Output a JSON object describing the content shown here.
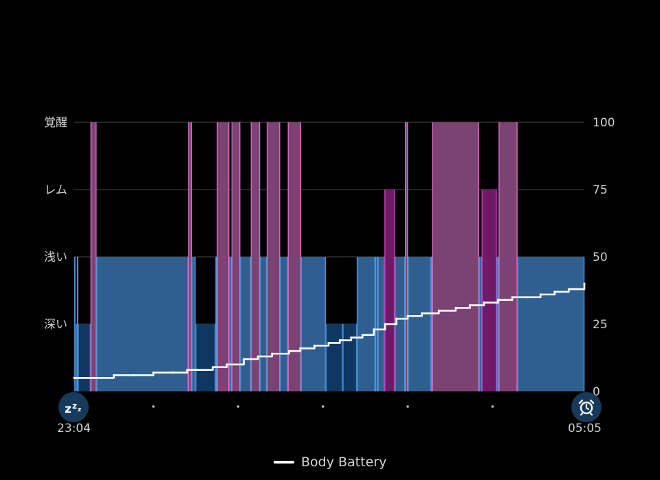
{
  "chart_data": {
    "type": "area",
    "stage_labels": [
      "覚醒",
      "レム",
      "浅い",
      "深い"
    ],
    "right_axis_ticks": [
      "100",
      "75",
      "50",
      "25",
      "0"
    ],
    "ylim": [
      0,
      100
    ],
    "x_start_label": "23:04",
    "x_end_label": "05:05",
    "x_range_minutes": [
      0,
      361
    ],
    "stage_series": {
      "name": "sleep_stages",
      "segments": [
        {
          "start": 0.0,
          "end": 0.4,
          "stage": "浅い"
        },
        {
          "start": 0.4,
          "end": 2.0,
          "stage": "深い"
        },
        {
          "start": 2.0,
          "end": 2.6,
          "stage": "浅い"
        },
        {
          "start": 2.6,
          "end": 11.6,
          "stage": "深い"
        },
        {
          "start": 11.6,
          "end": 15.7,
          "stage": "覚醒"
        },
        {
          "start": 15.7,
          "end": 80.7,
          "stage": "浅い"
        },
        {
          "start": 80.7,
          "end": 83.1,
          "stage": "覚醒"
        },
        {
          "start": 83.1,
          "end": 85.8,
          "stage": "浅い"
        },
        {
          "start": 85.8,
          "end": 100.0,
          "stage": "深い"
        },
        {
          "start": 100.0,
          "end": 101.0,
          "stage": "浅い"
        },
        {
          "start": 101.0,
          "end": 109.6,
          "stage": "覚醒"
        },
        {
          "start": 109.6,
          "end": 111.4,
          "stage": "浅い"
        },
        {
          "start": 111.4,
          "end": 117.4,
          "stage": "覚醒"
        },
        {
          "start": 117.4,
          "end": 125.0,
          "stage": "浅い"
        },
        {
          "start": 125.0,
          "end": 131.4,
          "stage": "覚醒"
        },
        {
          "start": 131.4,
          "end": 136.3,
          "stage": "浅い"
        },
        {
          "start": 136.3,
          "end": 145.6,
          "stage": "覚醒"
        },
        {
          "start": 145.6,
          "end": 151.2,
          "stage": "浅い"
        },
        {
          "start": 151.2,
          "end": 160.4,
          "stage": "覚醒"
        },
        {
          "start": 160.4,
          "end": 178.0,
          "stage": "浅い"
        },
        {
          "start": 178.0,
          "end": 190.0,
          "stage": "深い"
        },
        {
          "start": 190.0,
          "end": 200.0,
          "stage": "深い"
        },
        {
          "start": 200.0,
          "end": 213.0,
          "stage": "浅い"
        },
        {
          "start": 213.0,
          "end": 214.8,
          "stage": "浅い"
        },
        {
          "start": 214.8,
          "end": 219.6,
          "stage": "浅い"
        },
        {
          "start": 219.6,
          "end": 226.8,
          "stage": "レム"
        },
        {
          "start": 226.8,
          "end": 234.1,
          "stage": "浅い"
        },
        {
          "start": 234.1,
          "end": 236.1,
          "stage": "覚醒"
        },
        {
          "start": 236.1,
          "end": 252.6,
          "stage": "浅い"
        },
        {
          "start": 252.6,
          "end": 253.3,
          "stage": "浅い"
        },
        {
          "start": 253.3,
          "end": 286.4,
          "stage": "覚醒"
        },
        {
          "start": 286.4,
          "end": 288.4,
          "stage": "浅い"
        },
        {
          "start": 288.4,
          "end": 298.9,
          "stage": "レム"
        },
        {
          "start": 298.9,
          "end": 300.4,
          "stage": "浅い"
        },
        {
          "start": 300.4,
          "end": 313.6,
          "stage": "覚醒"
        },
        {
          "start": 313.6,
          "end": 361.0,
          "stage": "浅い"
        }
      ]
    },
    "series": [
      {
        "name": "Body Battery",
        "x": [
          0,
          14,
          28,
          42,
          56,
          70,
          80,
          86,
          98,
          108,
          120,
          130,
          140,
          152,
          160,
          170,
          180,
          188,
          196,
          204,
          212,
          220,
          228,
          236,
          246,
          258,
          270,
          280,
          290,
          300,
          310,
          320,
          330,
          340,
          350,
          361
        ],
        "values": [
          5,
          5,
          6,
          6,
          7,
          7,
          8,
          8,
          9,
          10,
          12,
          13,
          14,
          15,
          16,
          17,
          18,
          19,
          20,
          21,
          23,
          25,
          27,
          28,
          29,
          30,
          31,
          32,
          33,
          34,
          35,
          35,
          36,
          37,
          38,
          40
        ]
      }
    ],
    "x_minor_ticks": [
      56,
      116,
      176,
      236,
      296
    ],
    "grid": true,
    "legend_position": "bottom-center"
  },
  "legend": {
    "label": "Body Battery"
  },
  "icons": {
    "start": "sleep-zzz-icon",
    "end": "alarm-clock-icon"
  },
  "colors": {
    "light": "#2e5f8f",
    "light_edge": "#4f92d8",
    "deep": "#10375f",
    "deep_edge": "#3f86d0",
    "awake": "#7c4272",
    "awake_edge": "#d468c4",
    "rem": "#6e1a67",
    "rem_edge": "#c23ab8",
    "grid": "#4a4a4a",
    "line": "#ffffff",
    "button": "#173a5a"
  }
}
